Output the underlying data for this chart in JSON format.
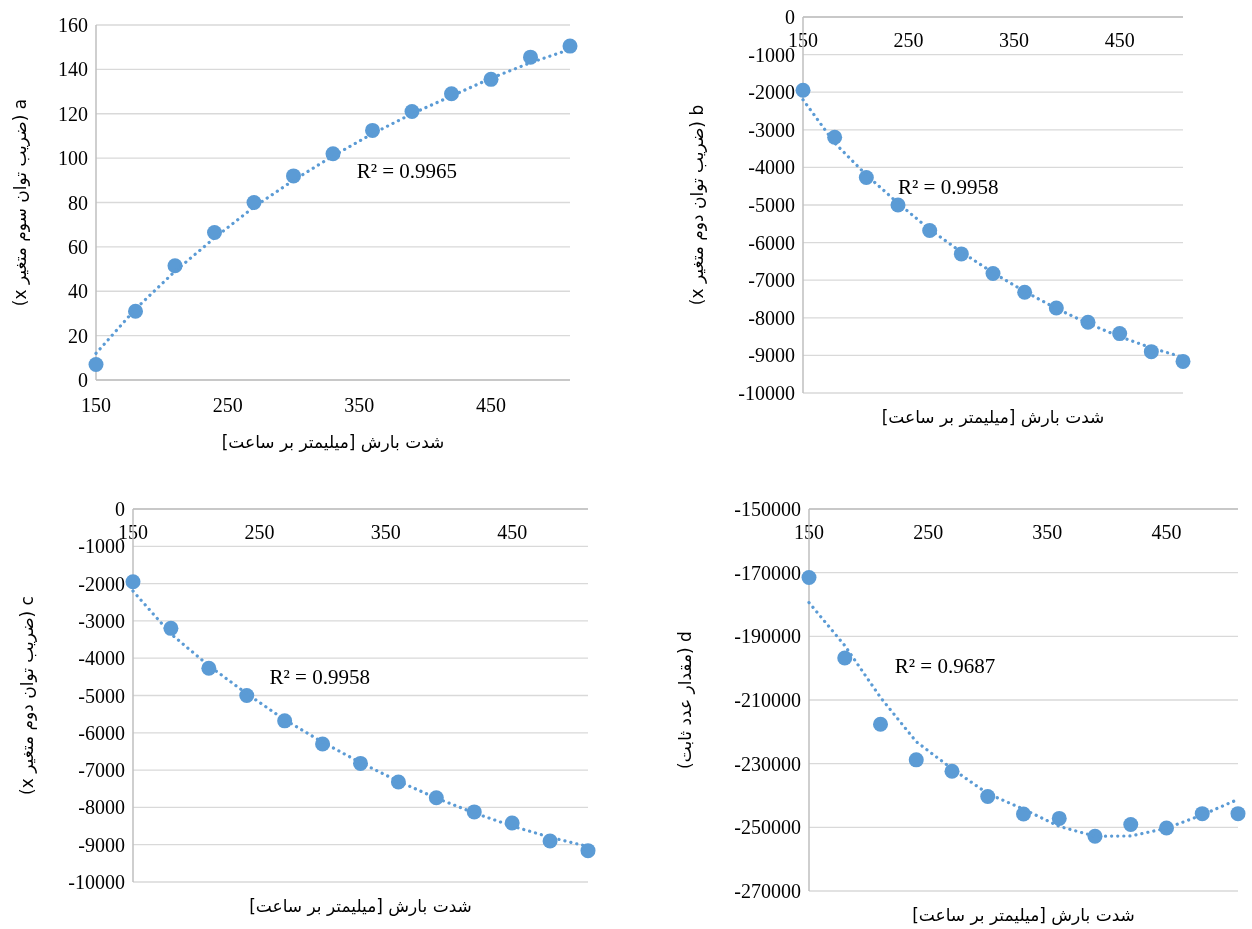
{
  "chart_data": [
    {
      "type": "scatter",
      "xlabel": "شدت بارش [میلیمتر بر ساعت]",
      "ylabel": "a (ضریب توان سوم متغیر x)",
      "xlim": [
        150,
        510
      ],
      "xticks": [
        150,
        250,
        350,
        450
      ],
      "ylim": [
        0,
        160
      ],
      "yticks": [
        0,
        20,
        40,
        60,
        80,
        100,
        120,
        140,
        160
      ],
      "grid": "y",
      "marker": "circle",
      "annotations": [
        "R² = 0.9965"
      ],
      "x": [
        150,
        180,
        210,
        240,
        270,
        300,
        330,
        360,
        390,
        420,
        450,
        480,
        510
      ],
      "series": [
        {
          "color": "#5b9bd5",
          "values": [
            7,
            31,
            51.5,
            66.5,
            80,
            92,
            102,
            112.5,
            121,
            129,
            135.5,
            145.5,
            150.5
          ]
        },
        {
          "type": "line",
          "line_style": "dotted",
          "marker": "none",
          "color": "#5b9bd5",
          "x": [
            150,
            180,
            210,
            240,
            270,
            300,
            330,
            360,
            390,
            420,
            450,
            480,
            510
          ],
          "values": [
            12,
            32,
            49,
            64,
            78,
            90,
            101,
            111,
            120,
            128,
            136,
            143,
            149
          ]
        }
      ]
    },
    {
      "type": "scatter",
      "xlabel": "شدت بارش [میلیمتر بر ساعت]",
      "ylabel": "b (ضریب توان دوم متغیر x)",
      "xlim": [
        150,
        510
      ],
      "xticks": [
        150,
        250,
        350,
        450
      ],
      "ylim": [
        -10000,
        0
      ],
      "yticks": [
        -10000,
        -9000,
        -8000,
        -7000,
        -6000,
        -5000,
        -4000,
        -3000,
        -2000,
        -1000,
        0
      ],
      "grid": "y",
      "marker": "circle",
      "annotations": [
        "R² = 0.9958"
      ],
      "x": [
        150,
        180,
        210,
        240,
        270,
        300,
        330,
        360,
        390,
        420,
        450,
        480,
        510
      ],
      "series": [
        {
          "color": "#5b9bd5",
          "values": [
            -1950,
            -3200,
            -4270,
            -5000,
            -5680,
            -6300,
            -6820,
            -7320,
            -7740,
            -8120,
            -8420,
            -8900,
            -9160
          ]
        },
        {
          "type": "line",
          "line_style": "dotted",
          "marker": "none",
          "color": "#5b9bd5",
          "x": [
            150,
            180,
            210,
            240,
            270,
            300,
            330,
            360,
            390,
            420,
            450,
            480,
            510
          ],
          "values": [
            -2200,
            -3350,
            -4200,
            -4950,
            -5650,
            -6250,
            -6800,
            -7300,
            -7750,
            -8150,
            -8500,
            -8800,
            -9050
          ]
        }
      ]
    },
    {
      "type": "scatter",
      "xlabel": "شدت بارش [میلیمتر بر ساعت]",
      "ylabel": "c (ضریب توان دوم متغیر x)",
      "xlim": [
        150,
        510
      ],
      "xticks": [
        150,
        250,
        350,
        450
      ],
      "ylim": [
        -10000,
        0
      ],
      "yticks": [
        -10000,
        -9000,
        -8000,
        -7000,
        -6000,
        -5000,
        -4000,
        -3000,
        -2000,
        -1000,
        0
      ],
      "grid": "y",
      "marker": "circle",
      "annotations": [
        "R² = 0.9958"
      ],
      "x": [
        150,
        180,
        210,
        240,
        270,
        300,
        330,
        360,
        390,
        420,
        450,
        480,
        510
      ],
      "series": [
        {
          "color": "#5b9bd5",
          "values": [
            -1950,
            -3200,
            -4270,
            -5000,
            -5680,
            -6300,
            -6820,
            -7320,
            -7740,
            -8120,
            -8420,
            -8900,
            -9160
          ]
        },
        {
          "type": "line",
          "line_style": "dotted",
          "marker": "none",
          "color": "#5b9bd5",
          "x": [
            150,
            180,
            210,
            240,
            270,
            300,
            330,
            360,
            390,
            420,
            450,
            480,
            510
          ],
          "values": [
            -2200,
            -3350,
            -4200,
            -4950,
            -5650,
            -6250,
            -6800,
            -7300,
            -7750,
            -8150,
            -8500,
            -8800,
            -9050
          ]
        }
      ]
    },
    {
      "type": "scatter",
      "xlabel": "شدت بارش [میلیمتر بر ساعت]",
      "ylabel": "d (مقدار عدد ثابت)",
      "xlim": [
        150,
        510
      ],
      "xticks": [
        150,
        250,
        350,
        450
      ],
      "ylim": [
        -270000,
        -150000
      ],
      "yticks": [
        -270000,
        -250000,
        -230000,
        -210000,
        -190000,
        -170000,
        -150000
      ],
      "grid": "y",
      "marker": "circle",
      "annotations": [
        "R² = 0.9687"
      ],
      "x": [
        150,
        180,
        210,
        240,
        270,
        300,
        330,
        360,
        390,
        420,
        450,
        480,
        510
      ],
      "series": [
        {
          "color": "#5b9bd5",
          "values": [
            -171500,
            -196800,
            -217600,
            -228800,
            -232400,
            -240300,
            -245800,
            -247200,
            -252800,
            -249100,
            -250200,
            -245700,
            -245700
          ]
        },
        {
          "type": "line",
          "line_style": "dotted",
          "marker": "none",
          "color": "#5b9bd5",
          "x": [
            150,
            180,
            210,
            240,
            270,
            300,
            330,
            360,
            390,
            420,
            450,
            480,
            510
          ],
          "values": [
            -179400,
            -192900,
            -209200,
            -223100,
            -231600,
            -239400,
            -244300,
            -249700,
            -252800,
            -252700,
            -250300,
            -246100,
            -241200
          ]
        }
      ]
    }
  ]
}
